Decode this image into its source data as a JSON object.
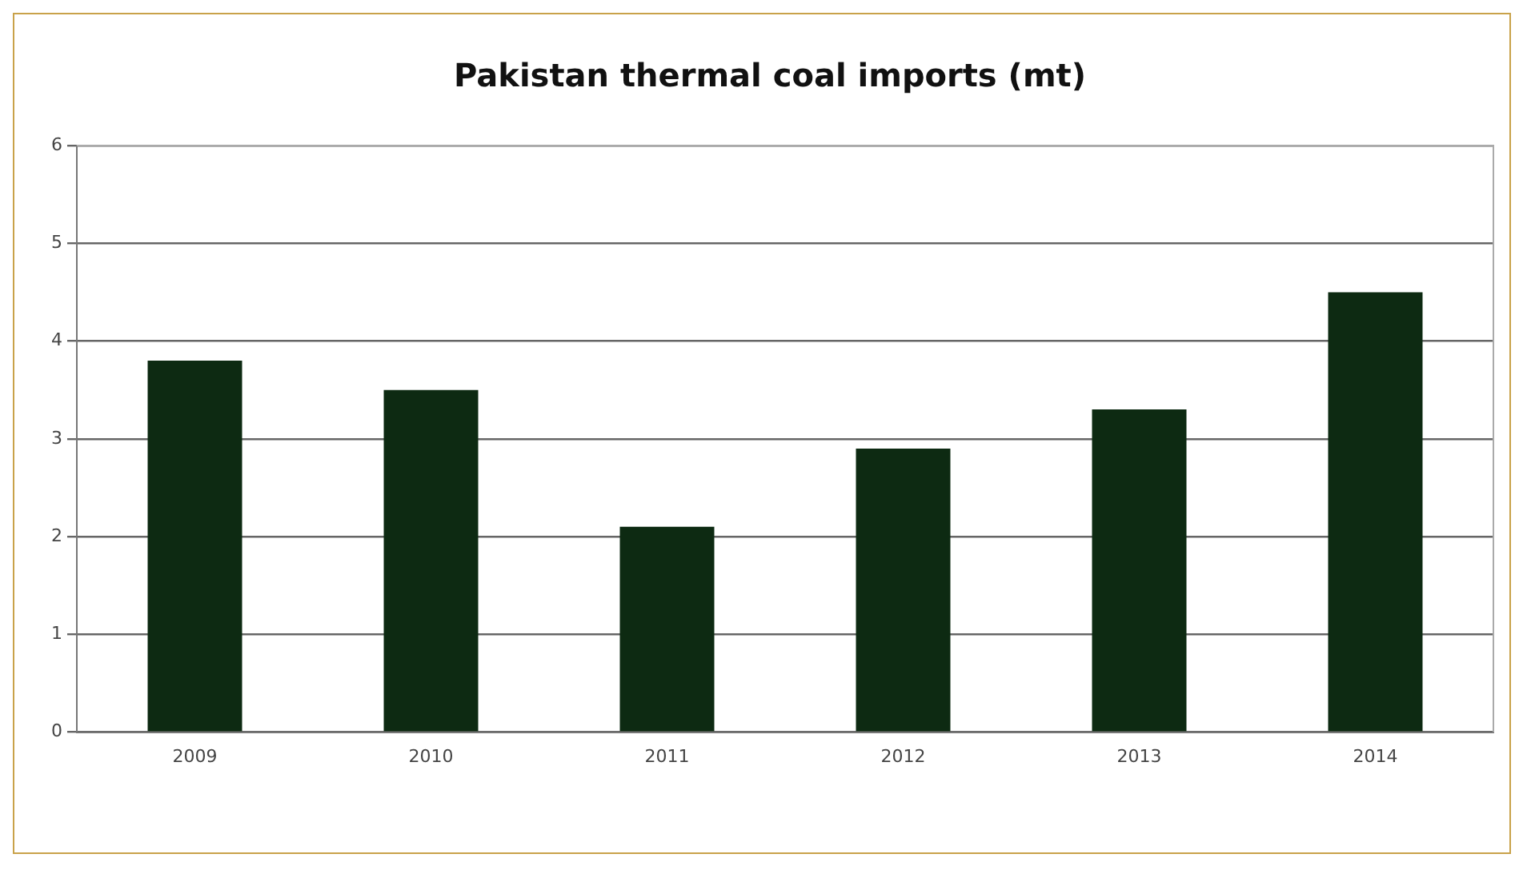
{
  "chart_data": {
    "type": "bar",
    "title": "Pakistan thermal coal imports (mt)",
    "categories": [
      "2009",
      "2010",
      "2011",
      "2012",
      "2013",
      "2014"
    ],
    "values": [
      3.8,
      3.5,
      2.1,
      2.9,
      3.3,
      4.5
    ],
    "color": "#0d2a12",
    "ylim": [
      0,
      6
    ],
    "yticks": [
      0,
      1,
      2,
      3,
      4,
      5,
      6
    ],
    "grid": "y",
    "legend": false
  }
}
